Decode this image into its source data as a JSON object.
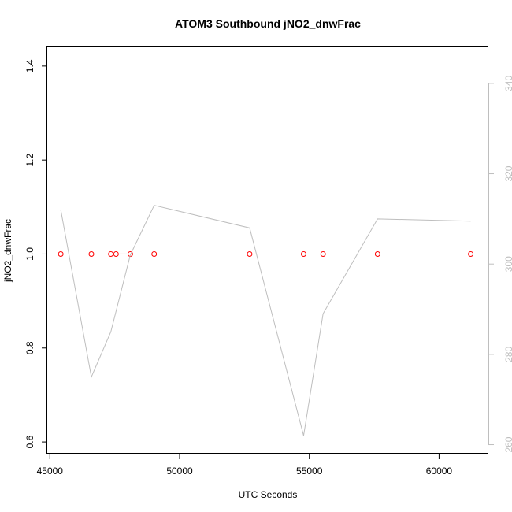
{
  "chart_data": {
    "type": "line",
    "title": "ATOM3 Southbound jNO2_dnwFrac",
    "xlabel": "UTC Seconds",
    "ylabel": "jNO2_dnwFrac",
    "y2label": "",
    "xlim": [
      44900,
      61900
    ],
    "ylim": [
      0.575,
      1.44
    ],
    "y2lim": [
      258,
      348
    ],
    "x_ticks": [
      45000,
      50000,
      55000,
      60000
    ],
    "x_tick_labels": [
      "45000",
      "50000",
      "55000",
      "60000"
    ],
    "y_ticks": [
      0.6,
      0.8,
      1.0,
      1.2,
      1.4
    ],
    "y_tick_labels": [
      "0.6",
      "0.8",
      "1.0",
      "1.2",
      "1.4"
    ],
    "y2_ticks": [
      260,
      280,
      300,
      320,
      340
    ],
    "y2_tick_labels": [
      "260",
      "280",
      "300",
      "320",
      "340"
    ],
    "grid": false,
    "legend": "none",
    "series": [
      {
        "axis": "left",
        "color": "#ff0000",
        "marker": "open-circle",
        "x": [
          45420,
          46600,
          47350,
          47550,
          48100,
          49020,
          52700,
          54780,
          55530,
          57630,
          61220
        ],
        "y": [
          1.0,
          1.0,
          1.0,
          1.0,
          1.0,
          1.0,
          1.0,
          1.0,
          1.0,
          1.0,
          1.0
        ]
      },
      {
        "axis": "right",
        "color": "#bebebe",
        "marker": "none",
        "x": [
          45420,
          46600,
          47350,
          48100,
          49020,
          52700,
          54780,
          55530,
          57630,
          61220
        ],
        "y": [
          312,
          275,
          285,
          302,
          313,
          308,
          262,
          289,
          310,
          309.5
        ]
      }
    ]
  }
}
